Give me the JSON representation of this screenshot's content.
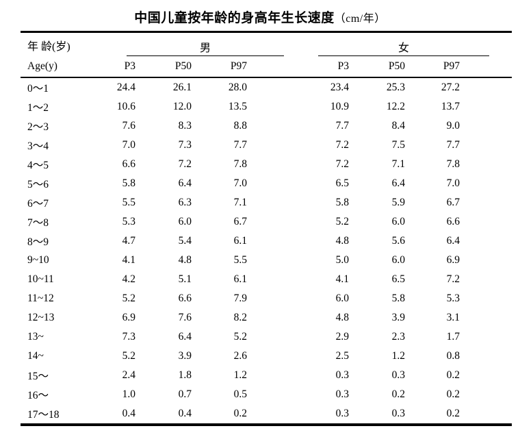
{
  "title": {
    "main": "中国儿童按年龄的身高年生长速度",
    "unit": "（cm/年）"
  },
  "table": {
    "header": {
      "age_label_cn": "年 龄(岁)",
      "age_label_en": "Age(y)",
      "male_label": "男",
      "female_label": "女",
      "percentile_labels": [
        "P3",
        "P50",
        "P97"
      ]
    },
    "rows": [
      {
        "age": "0～1",
        "male": [
          "24.4",
          "26.1",
          "28.0"
        ],
        "female": [
          "23.4",
          "25.3",
          "27.2"
        ]
      },
      {
        "age": "1～2",
        "male": [
          "10.6",
          "12.0",
          "13.5"
        ],
        "female": [
          "10.9",
          "12.2",
          "13.7"
        ]
      },
      {
        "age": "2～3",
        "male": [
          "7.6",
          "8.3",
          "8.8"
        ],
        "female": [
          "7.7",
          "8.4",
          "9.0"
        ]
      },
      {
        "age": "3～4",
        "male": [
          "7.0",
          "7.3",
          "7.7"
        ],
        "female": [
          "7.2",
          "7.5",
          "7.7"
        ]
      },
      {
        "age": "4～5",
        "male": [
          "6.6",
          "7.2",
          "7.8"
        ],
        "female": [
          "7.2",
          "7.1",
          "7.8"
        ]
      },
      {
        "age": "5～6",
        "male": [
          "5.8",
          "6.4",
          "7.0"
        ],
        "female": [
          "6.5",
          "6.4",
          "7.0"
        ]
      },
      {
        "age": "6～7",
        "male": [
          "5.5",
          "6.3",
          "7.1"
        ],
        "female": [
          "5.8",
          "5.9",
          "6.7"
        ]
      },
      {
        "age": "7～8",
        "male": [
          "5.3",
          "6.0",
          "6.7"
        ],
        "female": [
          "5.2",
          "6.0",
          "6.6"
        ]
      },
      {
        "age": "8～9",
        "male": [
          "4.7",
          "5.4",
          "6.1"
        ],
        "female": [
          "4.8",
          "5.6",
          "6.4"
        ]
      },
      {
        "age": "9~10",
        "male": [
          "4.1",
          "4.8",
          "5.5"
        ],
        "female": [
          "5.0",
          "6.0",
          "6.9"
        ]
      },
      {
        "age": "10~11",
        "male": [
          "4.2",
          "5.1",
          "6.1"
        ],
        "female": [
          "4.1",
          "6.5",
          "7.2"
        ]
      },
      {
        "age": "11~12",
        "male": [
          "5.2",
          "6.6",
          "7.9"
        ],
        "female": [
          "6.0",
          "5.8",
          "5.3"
        ]
      },
      {
        "age": "12~13",
        "male": [
          "6.9",
          "7.6",
          "8.2"
        ],
        "female": [
          "4.8",
          "3.9",
          "3.1"
        ]
      },
      {
        "age": "13~",
        "male": [
          "7.3",
          "6.4",
          "5.2"
        ],
        "female": [
          "2.9",
          "2.3",
          "1.7"
        ]
      },
      {
        "age": "14~",
        "male": [
          "5.2",
          "3.9",
          "2.6"
        ],
        "female": [
          "2.5",
          "1.2",
          "0.8"
        ]
      },
      {
        "age": "15～",
        "male": [
          "2.4",
          "1.8",
          "1.2"
        ],
        "female": [
          "0.3",
          "0.3",
          "0.2"
        ]
      },
      {
        "age": "16～",
        "male": [
          "1.0",
          "0.7",
          "0.5"
        ],
        "female": [
          "0.3",
          "0.2",
          "0.2"
        ]
      },
      {
        "age": "17～18",
        "male": [
          "0.4",
          "0.4",
          "0.2"
        ],
        "female": [
          "0.3",
          "0.3",
          "0.2"
        ]
      }
    ]
  }
}
